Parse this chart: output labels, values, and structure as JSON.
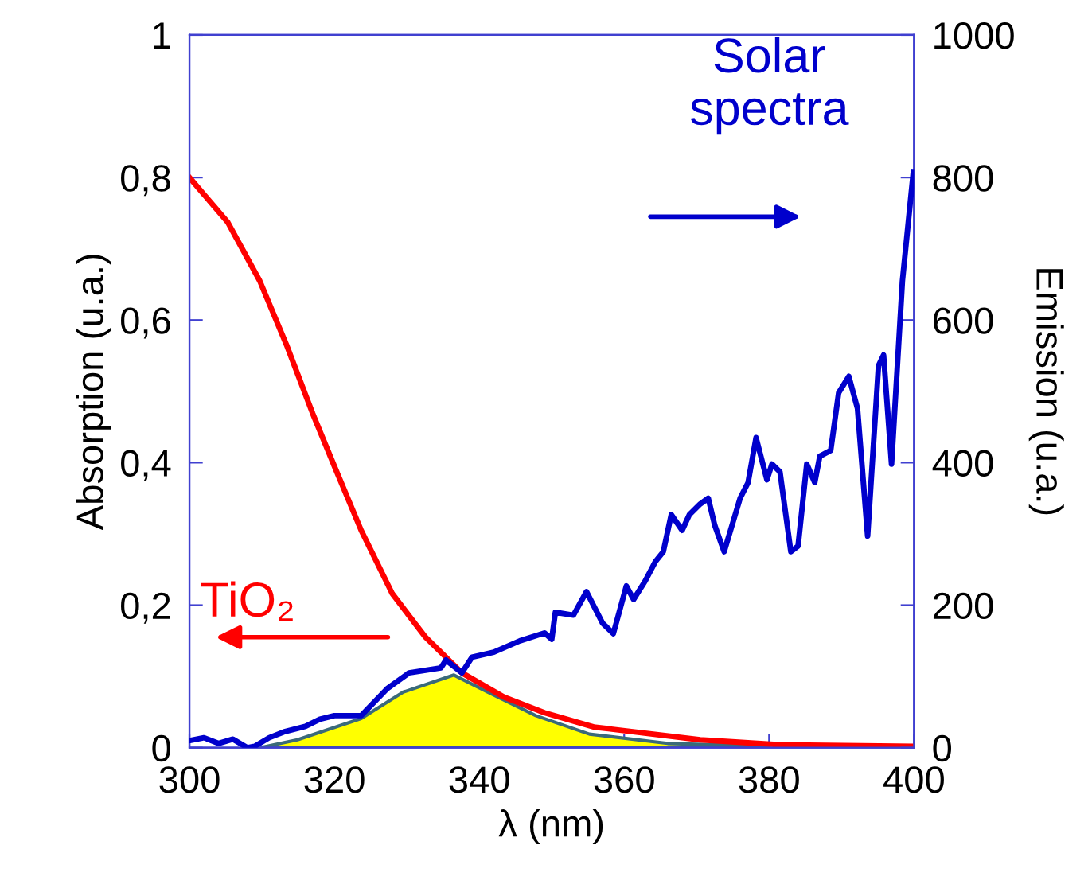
{
  "chart_data": {
    "type": "line",
    "xlabel": "λ (nm)",
    "ylabel": "Absorption (u.a.)",
    "y2label": "Emission (u.a.)",
    "xlim": [
      300,
      400
    ],
    "xticks": [
      300,
      320,
      340,
      360,
      380,
      400
    ],
    "ylim": [
      0,
      1
    ],
    "yticks": [
      0,
      {
        "value": 0.2,
        "label": "0,2"
      },
      {
        "value": 0.4,
        "label": "0,4"
      },
      {
        "value": 0.6,
        "label": "0,6"
      },
      {
        "value": 0.8,
        "label": "0,8"
      },
      1
    ],
    "y2lim": [
      0,
      1000
    ],
    "y2ticks": [
      0,
      200,
      400,
      600,
      800,
      1000
    ],
    "grid": false,
    "legend": false,
    "annotations": [
      "TiO₂",
      "Solar spectra"
    ],
    "series": [
      {
        "type": "area",
        "color": "#ffff00",
        "x": [
          309.7,
          314.9,
          323.7,
          329.5,
          336.5,
          341.2,
          347.8,
          355.2,
          366,
          380
        ],
        "values": [
          0,
          0.011,
          0.041,
          0.078,
          0.102,
          0.078,
          0.045,
          0.019,
          0.006,
          0.002
        ]
      },
      {
        "color": "#ff0000",
        "x": [
          300,
          305.3,
          309.7,
          313.4,
          317,
          320,
          323.7,
          328,
          332.5,
          337.6,
          343.4,
          349,
          355.8,
          370.5,
          381.5,
          400
        ],
        "values": [
          0.8,
          0.737,
          0.655,
          0.565,
          0.469,
          0.395,
          0.305,
          0.216,
          0.156,
          0.105,
          0.071,
          0.049,
          0.029,
          0.011,
          0.004,
          0.002
        ]
      },
      {
        "color": "#0000cc",
        "axis": "y2",
        "x": [
          300,
          302,
          304,
          306,
          308,
          309,
          311,
          313,
          316,
          318,
          320,
          323.7,
          327.3,
          330.3,
          334.7,
          335.4,
          337.6,
          339,
          342,
          345.6,
          349,
          350,
          350.5,
          353,
          354.8,
          357,
          358.5,
          360.3,
          361.3,
          362.9,
          364.3,
          365.4,
          366.5,
          368,
          369,
          370.5,
          371.6,
          372.5,
          373.8,
          376,
          377.1,
          378.2,
          379.7,
          380.4,
          381.5,
          383,
          384,
          385.2,
          386.3,
          387,
          388.5,
          389.6,
          391,
          392.2,
          393.6,
          395.1,
          395.8,
          396.9,
          398.4,
          399.9
        ],
        "values": [
          10,
          14,
          6,
          12,
          0,
          2,
          14,
          22,
          30,
          40,
          45,
          45,
          83,
          105,
          112,
          123,
          105,
          127,
          134,
          150,
          161,
          152,
          190,
          186,
          219,
          175,
          160,
          227,
          208,
          234,
          261,
          275,
          327,
          305,
          327,
          342,
          350,
          312,
          275,
          350,
          372,
          435,
          376,
          398,
          387,
          275,
          283,
          398,
          372,
          409,
          417,
          498,
          521,
          476,
          297,
          536,
          551,
          398,
          655,
          807
        ]
      }
    ]
  }
}
